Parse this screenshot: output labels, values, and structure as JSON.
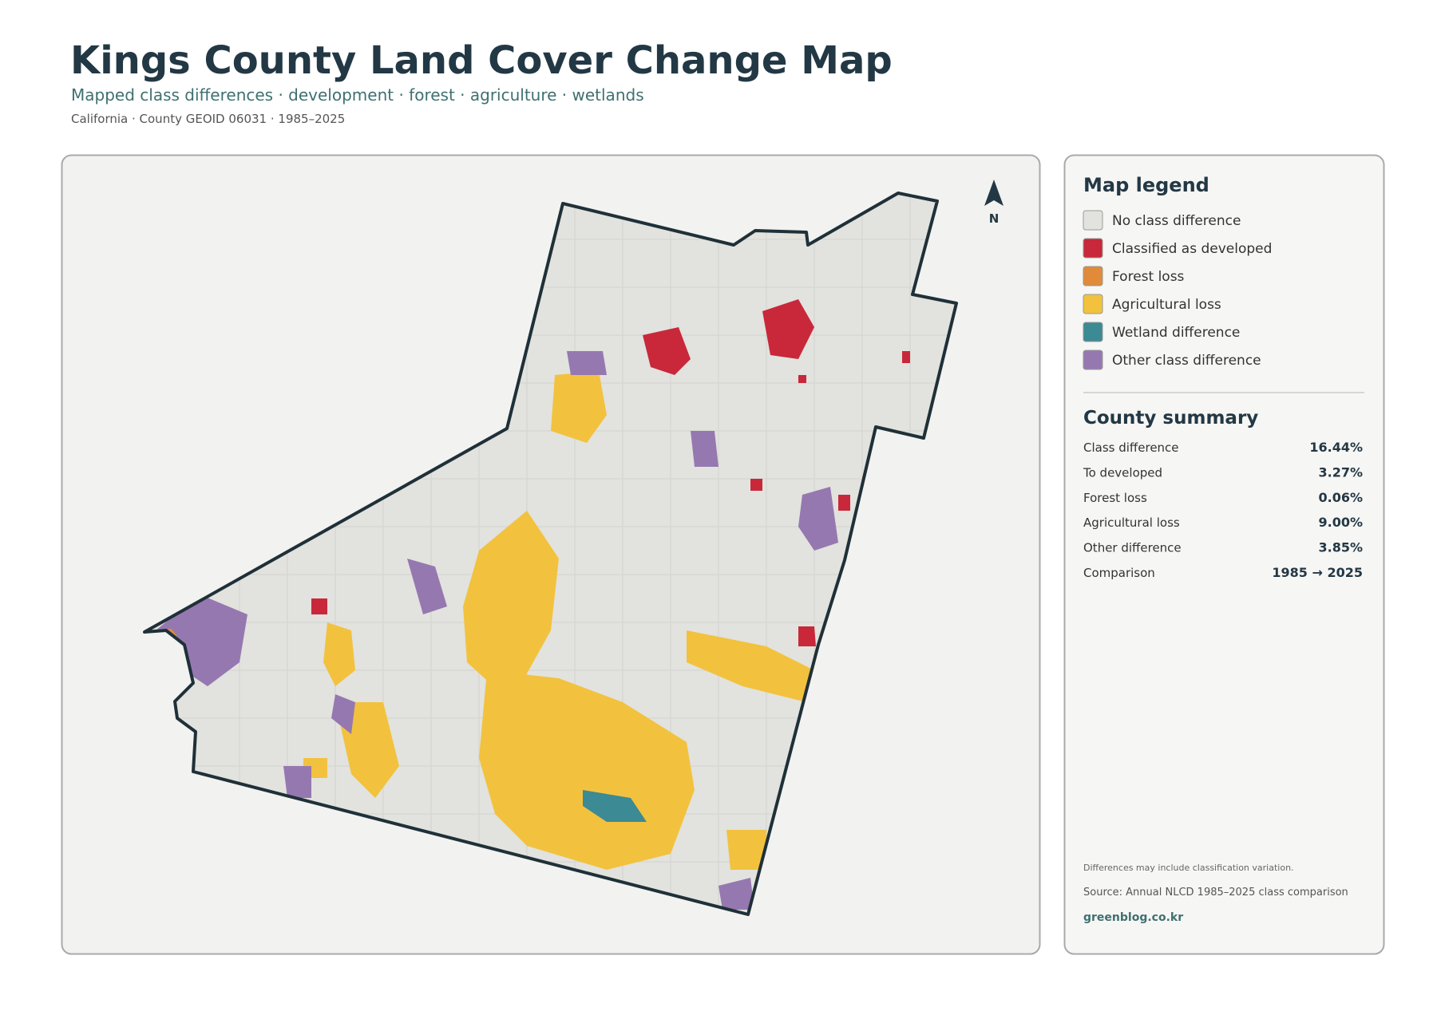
{
  "header": {
    "title": "Kings County Land Cover Change Map",
    "subtitle": "Mapped class differences · development · forest · agriculture · wetlands",
    "meta": "California · County GEOID 06031 · 1985–2025"
  },
  "map": {
    "north_label": "N"
  },
  "legend": {
    "title": "Map legend",
    "items": [
      {
        "label": "No class difference",
        "color": "#e2e2de"
      },
      {
        "label": "Classified as developed",
        "color": "#c8283a"
      },
      {
        "label": "Forest loss",
        "color": "#e08a3a"
      },
      {
        "label": "Agricultural loss",
        "color": "#f2c23e"
      },
      {
        "label": "Wetland difference",
        "color": "#3b8a94"
      },
      {
        "label": "Other class difference",
        "color": "#9678b0"
      }
    ]
  },
  "summary": {
    "title": "County summary",
    "rows": [
      {
        "label": "Class difference",
        "value": "16.44%"
      },
      {
        "label": "To developed",
        "value": "3.27%"
      },
      {
        "label": "Forest loss",
        "value": "0.06%"
      },
      {
        "label": "Agricultural loss",
        "value": "9.00%"
      },
      {
        "label": "Other difference",
        "value": "3.85%"
      },
      {
        "label": "Comparison",
        "value": "1985 → 2025"
      }
    ]
  },
  "footer": {
    "note": "Differences may include classification variation.",
    "source": "Source: Annual NLCD 1985–2025 class comparison",
    "credit": "greenblog.co.kr"
  }
}
